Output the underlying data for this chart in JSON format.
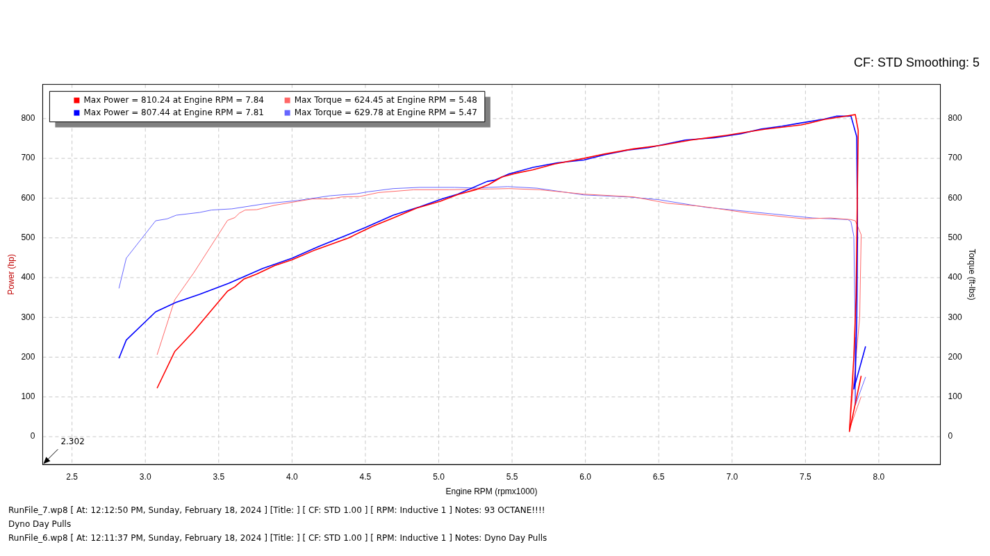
{
  "chart_data": {
    "type": "line",
    "subtitle": "CF: STD Smoothing: 5",
    "xlabel": "Engine RPM (rpmx1000)",
    "ylabel": "Power (hp)",
    "y2label": "Torque (ft-lbs)",
    "xlim": [
      2.3,
      8.42
    ],
    "xticks": [
      2.5,
      {
        "value": 3,
        "label": "3.0"
      },
      3.5,
      {
        "value": 4,
        "label": "4.0"
      },
      4.5,
      {
        "value": 5,
        "label": "5.0"
      },
      5.5,
      {
        "value": 6,
        "label": "6.0"
      },
      6.5,
      {
        "value": 7,
        "label": "7.0"
      },
      7.5,
      {
        "value": 8,
        "label": "8.0"
      }
    ],
    "ylim": [
      -70,
      886
    ],
    "yticks": [
      0,
      100,
      200,
      300,
      400,
      500,
      600,
      700,
      800
    ],
    "y2lim": [
      -70,
      886
    ],
    "y2ticks": [
      0,
      100,
      200,
      300,
      400,
      500,
      600,
      700,
      800
    ],
    "grid": true,
    "legend": "top left",
    "line_style": "solid",
    "series": [
      {
        "name": "Max Power = 810.24 at Engine RPM = 7.84",
        "color": "#ff0000",
        "x": [
          3.08,
          3.2,
          3.33,
          3.56,
          3.61,
          3.67,
          3.76,
          3.88,
          4.0,
          4.16,
          4.38,
          4.55,
          4.69,
          4.85,
          5.01,
          5.13,
          5.25,
          5.34,
          5.43,
          5.52,
          5.64,
          5.79,
          5.99,
          6.13,
          6.33,
          6.52,
          6.72,
          6.96,
          7.22,
          7.47,
          7.53,
          7.63,
          7.77,
          7.84,
          7.86,
          7.855,
          7.845,
          7.83,
          7.8,
          7.88
        ],
        "values": [
          122,
          214,
          265,
          366,
          377,
          396,
          409,
          430,
          445,
          470,
          499,
          529,
          550,
          575,
          592,
          609,
          621,
          634,
          653,
          662,
          671,
          686,
          700,
          711,
          724,
          733,
          746,
          758,
          773,
          784,
          789,
          798,
          806,
          810,
          770,
          640,
          350,
          200,
          13,
          153
        ]
      },
      {
        "name": "Max Power = 807.44 at Engine RPM = 7.81",
        "color": "#0000ff",
        "x": [
          2.82,
          2.87,
          3.07,
          3.21,
          3.37,
          3.57,
          3.8,
          4.0,
          4.18,
          4.5,
          4.69,
          4.87,
          5.03,
          5.13,
          5.33,
          5.38,
          5.48,
          5.64,
          5.81,
          5.99,
          6.13,
          6.29,
          6.43,
          6.68,
          6.88,
          7.06,
          7.2,
          7.34,
          7.47,
          7.63,
          7.71,
          7.79,
          7.81,
          7.85,
          7.855,
          7.85,
          7.84,
          7.83,
          7.89,
          7.91
        ],
        "values": [
          197,
          243,
          314,
          338,
          358,
          386,
          423,
          449,
          478,
          526,
          557,
          578,
          599,
          610,
          642,
          645,
          661,
          677,
          689,
          696,
          709,
          721,
          727,
          746,
          752,
          762,
          774,
          781,
          789,
          799,
          806,
          806,
          807,
          754,
          500,
          300,
          150,
          120,
          200,
          227
        ]
      },
      {
        "name": "Max Torque = 624.45 at Engine RPM = 5.48",
        "color": "#ff6666",
        "axis": "y2",
        "x": [
          3.08,
          3.2,
          3.33,
          3.56,
          3.61,
          3.64,
          3.68,
          3.76,
          3.88,
          4.04,
          4.14,
          4.26,
          4.34,
          4.46,
          4.59,
          4.83,
          5.07,
          5.35,
          5.48,
          5.69,
          5.99,
          6.33,
          6.56,
          6.8,
          7.12,
          7.49,
          7.67,
          7.81,
          7.84,
          7.88,
          7.87,
          7.8,
          7.88
        ],
        "values": [
          206,
          344,
          412,
          544,
          551,
          562,
          570,
          571,
          582,
          592,
          598,
          598,
          603,
          604,
          614,
          621,
          621,
          623,
          624,
          621,
          610,
          603,
          587,
          579,
          562,
          548,
          550,
          546,
          543,
          508,
          300,
          19,
          101
        ]
      },
      {
        "name": "Max Torque = 629.78 at Engine RPM = 5.47",
        "color": "#6666ff",
        "axis": "y2",
        "x": [
          2.82,
          2.87,
          3.07,
          3.15,
          3.21,
          3.37,
          3.45,
          3.59,
          3.8,
          4.04,
          4.26,
          4.44,
          4.52,
          4.69,
          4.87,
          5.11,
          5.27,
          5.34,
          5.47,
          5.67,
          5.99,
          6.29,
          6.5,
          6.82,
          7.12,
          7.55,
          7.79,
          7.81,
          7.83,
          7.84,
          7.84,
          7.91
        ],
        "values": [
          373,
          449,
          543,
          548,
          557,
          564,
          570,
          573,
          585,
          594,
          606,
          611,
          616,
          624,
          627,
          627,
          625,
          627,
          629,
          625,
          608,
          603,
          596,
          577,
          566,
          550,
          546,
          541,
          504,
          250,
          79,
          150
        ]
      }
    ],
    "annotations": [
      "2.302",
      "RunFile_7.wp8 [ At: 12:12:50 PM, Sunday, February 18, 2024 ] [Title: ] [ CF: STD 1.00 ] [ RPM: Inductive 1 ] Notes: 93 OCTANE!!!!",
      "Dyno Day Pulls",
      "RunFile_6.wp8 [ At: 12:11:37 PM, Sunday, February 18, 2024 ] [Title: ] [ CF: STD 1.00 ] [ RPM: Inductive 1 ] Notes: Dyno Day Pulls"
    ]
  }
}
